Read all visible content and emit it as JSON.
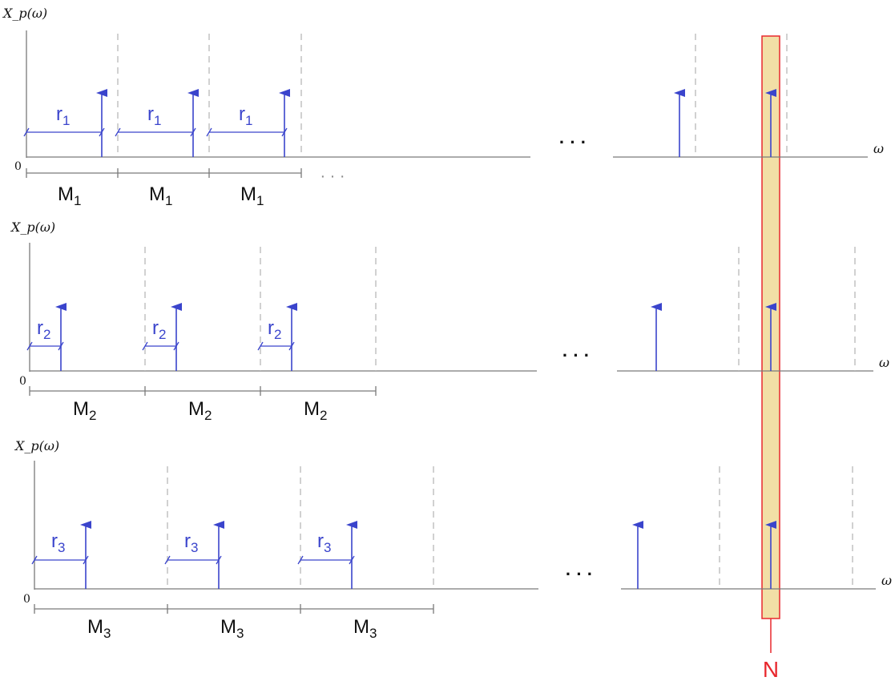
{
  "colors": {
    "axis": "#7a7a7a",
    "dashed": "#b8b8b8",
    "impulse": "#3a44cc",
    "r_label": "#3a44cc",
    "highlight_fill": "#f2dfa6",
    "highlight_stroke": "#e8282e",
    "N_color": "#e8282e",
    "text": "#111111"
  },
  "highlight": {
    "label": "N"
  },
  "rows": [
    {
      "y_label": "X_p(ω)",
      "origin_label": "0",
      "x_label": "ω",
      "segments": [
        "M",
        "M",
        "M"
      ],
      "segment_sub": "1",
      "r_labels": [
        "r",
        "r",
        "r"
      ],
      "r_sub": "1",
      "continuation": "· · ·",
      "bottom_dots": "· · ·"
    },
    {
      "y_label": "X_p(ω)",
      "origin_label": "0",
      "x_label": "ω",
      "segments": [
        "M",
        "M",
        "M"
      ],
      "segment_sub": "2",
      "r_labels": [
        "r",
        "r",
        "r"
      ],
      "r_sub": "2",
      "continuation": "· · ·"
    },
    {
      "y_label": "X_p(ω)",
      "origin_label": "0",
      "x_label": "ω",
      "segments": [
        "M",
        "M",
        "M"
      ],
      "segment_sub": "3",
      "r_labels": [
        "r",
        "r",
        "r"
      ],
      "r_sub": "3",
      "continuation": "· · ·"
    }
  ]
}
